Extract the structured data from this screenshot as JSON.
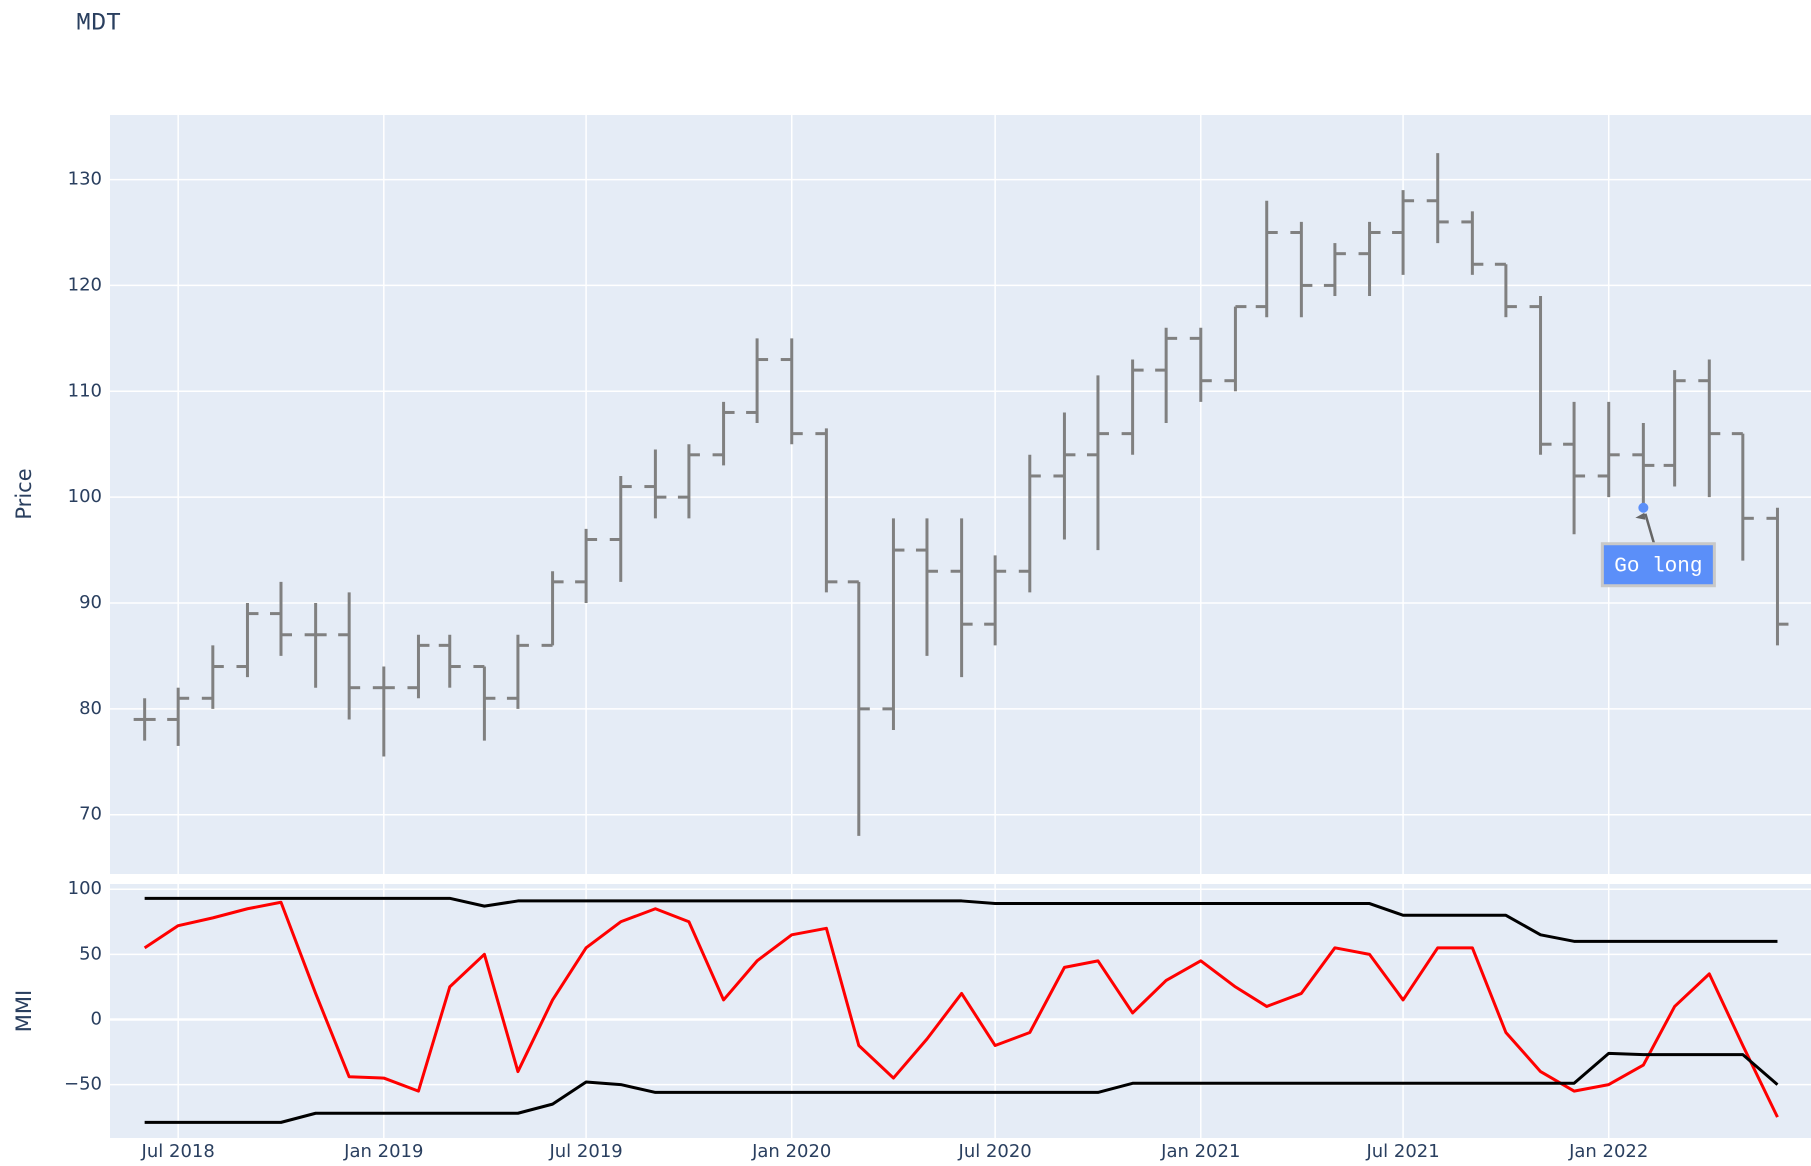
{
  "chart_data": [
    {
      "type": "ohlc",
      "title": "MDT",
      "ylabel": "Price",
      "x": [
        "2018-06",
        "2018-07",
        "2018-08",
        "2018-09",
        "2018-10",
        "2018-11",
        "2018-12",
        "2019-01",
        "2019-02",
        "2019-03",
        "2019-04",
        "2019-05",
        "2019-06",
        "2019-07",
        "2019-08",
        "2019-09",
        "2019-10",
        "2019-11",
        "2019-12",
        "2020-01",
        "2020-02",
        "2020-03",
        "2020-04",
        "2020-05",
        "2020-06",
        "2020-07",
        "2020-08",
        "2020-09",
        "2020-10",
        "2020-11",
        "2020-12",
        "2021-01",
        "2021-02",
        "2021-03",
        "2021-04",
        "2021-05",
        "2021-06",
        "2021-07",
        "2021-08",
        "2021-09",
        "2021-10",
        "2021-11",
        "2021-12",
        "2022-01",
        "2022-02",
        "2022-03",
        "2022-04",
        "2022-05",
        "2022-06"
      ],
      "open": [
        79,
        79,
        81,
        84,
        89,
        87,
        87,
        82,
        82,
        86,
        84,
        81,
        86,
        92,
        96,
        101,
        100,
        104,
        108,
        113,
        106,
        92,
        80,
        95,
        93,
        88,
        93,
        102,
        104,
        106,
        112,
        115,
        111,
        118,
        125,
        120,
        123,
        125,
        128,
        126,
        122,
        118,
        105,
        102,
        104,
        103,
        111,
        106,
        98
      ],
      "high": [
        81,
        82,
        86,
        90,
        92,
        90,
        91,
        84,
        87,
        87,
        84,
        87,
        93,
        97,
        102,
        104.5,
        105,
        109,
        115,
        115,
        106.5,
        92,
        98,
        98,
        98,
        94.5,
        104,
        108,
        111.5,
        113,
        116,
        116,
        118,
        128,
        126,
        124,
        126,
        129,
        132.5,
        127,
        122,
        119,
        109,
        109,
        107,
        112,
        113,
        106,
        99
      ],
      "low": [
        77,
        76.5,
        80,
        83,
        85,
        82,
        79,
        75.5,
        81,
        82,
        77,
        80,
        86,
        90,
        92,
        98,
        98,
        103,
        107,
        105,
        91,
        68,
        78,
        85,
        83,
        86,
        91,
        96,
        95,
        104,
        107,
        109,
        110,
        117,
        117,
        119,
        119,
        121,
        124,
        121,
        117,
        104,
        96.5,
        100,
        99,
        101,
        100,
        94,
        86
      ],
      "close": [
        79,
        81,
        84,
        89,
        87,
        87,
        82,
        82,
        86,
        84,
        81,
        86,
        92,
        96,
        101,
        100,
        104,
        108,
        113,
        106,
        92,
        80,
        95,
        93,
        88,
        93,
        102,
        104,
        106,
        112,
        115,
        111,
        118,
        125,
        120,
        123,
        125,
        128,
        126,
        122,
        118,
        105,
        102,
        104,
        103,
        111,
        106,
        98,
        88
      ],
      "color": "#808080",
      "xlim": [
        "2018-05",
        "2022-07"
      ],
      "ylim": [
        64.4,
        136.1
      ],
      "yticks": [
        70,
        80,
        90,
        100,
        110,
        120,
        130
      ],
      "grid": true,
      "annotations": [
        {
          "text": "Go long",
          "x": "2022-02",
          "y": 99,
          "color": "#5b8ff9"
        }
      ]
    },
    {
      "type": "line",
      "ylabel": "MMI",
      "x": [
        "2018-06",
        "2018-07",
        "2018-08",
        "2018-09",
        "2018-10",
        "2018-11",
        "2018-12",
        "2019-01",
        "2019-02",
        "2019-03",
        "2019-04",
        "2019-05",
        "2019-06",
        "2019-07",
        "2019-08",
        "2019-09",
        "2019-10",
        "2019-11",
        "2019-12",
        "2020-01",
        "2020-02",
        "2020-03",
        "2020-04",
        "2020-05",
        "2020-06",
        "2020-07",
        "2020-08",
        "2020-09",
        "2020-10",
        "2020-11",
        "2020-12",
        "2021-01",
        "2021-02",
        "2021-03",
        "2021-04",
        "2021-05",
        "2021-06",
        "2021-07",
        "2021-08",
        "2021-09",
        "2021-10",
        "2021-11",
        "2021-12",
        "2022-01",
        "2022-02",
        "2022-03",
        "2022-04",
        "2022-05",
        "2022-06"
      ],
      "series": [
        {
          "color": "#ff0000",
          "values": [
            55,
            72,
            78,
            85,
            90,
            20,
            -44,
            -45,
            -55,
            25,
            50,
            -40,
            15,
            55,
            75,
            85,
            75,
            15,
            45,
            65,
            70,
            -20,
            -45,
            -15,
            20,
            -20,
            -10,
            40,
            45,
            5,
            30,
            45,
            25,
            10,
            20,
            55,
            50,
            15,
            55,
            55,
            -10,
            -40,
            -55,
            -50,
            -35,
            10,
            35,
            -20,
            -75
          ]
        },
        {
          "color": "#000000",
          "values": [
            93,
            93,
            93,
            93,
            93,
            93,
            93,
            93,
            93,
            93,
            87,
            91,
            91,
            91,
            91,
            91,
            91,
            91,
            91,
            91,
            91,
            91,
            91,
            91,
            91,
            89,
            89,
            89,
            89,
            89,
            89,
            89,
            89,
            89,
            89,
            89,
            89,
            80,
            80,
            80,
            80,
            65,
            60,
            60,
            60,
            60,
            60,
            60,
            60
          ]
        },
        {
          "color": "#000000",
          "values": [
            -79,
            -79,
            -79,
            -79,
            -79,
            -72,
            -72,
            -72,
            -72,
            -72,
            -72,
            -72,
            -65,
            -48,
            -50,
            -56,
            -56,
            -56,
            -56,
            -56,
            -56,
            -56,
            -56,
            -56,
            -56,
            -56,
            -56,
            -56,
            -56,
            -49,
            -49,
            -49,
            -49,
            -49,
            -49,
            -49,
            -49,
            -49,
            -49,
            -49,
            -49,
            -49,
            -49,
            -26,
            -27,
            -27,
            -27,
            -27,
            -50
          ]
        }
      ],
      "xlim": [
        "2018-05",
        "2022-07"
      ],
      "xticks": [
        {
          "value": "2018-07",
          "label": "Jul 2018"
        },
        {
          "value": "2019-01",
          "label": "Jan 2019"
        },
        {
          "value": "2019-07",
          "label": "Jul 2019"
        },
        {
          "value": "2020-01",
          "label": "Jan 2020"
        },
        {
          "value": "2020-07",
          "label": "Jul 2020"
        },
        {
          "value": "2021-01",
          "label": "Jan 2021"
        },
        {
          "value": "2021-07",
          "label": "Jul 2021"
        },
        {
          "value": "2022-01",
          "label": "Jan 2022"
        }
      ],
      "ylim": [
        -91,
        104
      ],
      "yticks": [
        100,
        50,
        0,
        {
          "value": -50,
          "label": "−50"
        }
      ],
      "grid": true
    }
  ]
}
